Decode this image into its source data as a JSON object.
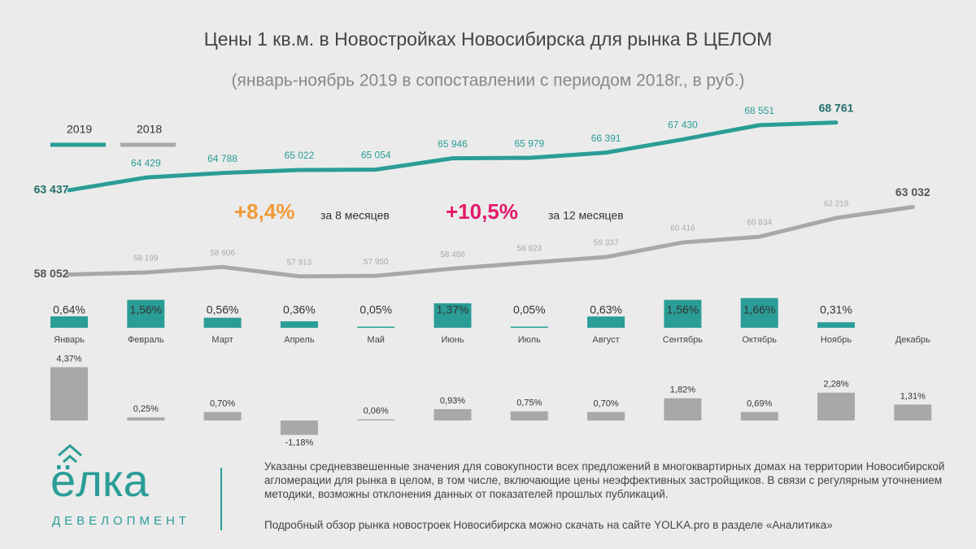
{
  "chart_data": [
    {
      "type": "line",
      "title": "Цены 1 кв.м. в Новостройках Новосибирска для рынка В ЦЕЛОМ",
      "subtitle": "(январь-ноябрь 2019 в сопоставлении с периодом 2018г., в руб.)",
      "categories": [
        "Январь",
        "Февраль",
        "Март",
        "Апрель",
        "Май",
        "Июнь",
        "Июль",
        "Август",
        "Сентябрь",
        "Октябрь",
        "Ноябрь",
        "Декабрь"
      ],
      "series": [
        {
          "name": "2019",
          "color": "#2a9d96",
          "values": [
            63437,
            64429,
            64788,
            65022,
            65054,
            65946,
            65979,
            66391,
            67430,
            68551,
            68761,
            null
          ],
          "value_labels": [
            "63 437",
            "64 429",
            "64 788",
            "65 022",
            "65 054",
            "65 946",
            "65 979",
            "66 391",
            "67 430",
            "68 551",
            "68 761",
            null
          ]
        },
        {
          "name": "2018",
          "color": "#a8a8a8",
          "axis": "y2",
          "values": [
            58052,
            58199,
            58606,
            57913,
            57950,
            58486,
            58923,
            59337,
            60416,
            60834,
            62219,
            63032
          ],
          "value_labels": [
            "58 052",
            "58 199",
            "58 606",
            "57 913",
            "57 950",
            "58 486",
            "58 923",
            "59 337",
            "60 416",
            "60 834",
            "62 219",
            "63 032"
          ]
        }
      ],
      "ylim": [
        56000,
        72000
      ],
      "y2lim": [
        57300,
        72300
      ],
      "annotations": [
        {
          "value": "+8,4%",
          "text": "за 8 месяцев"
        },
        {
          "value": "+10,5%",
          "text": "за 12 месяцев"
        }
      ]
    },
    {
      "type": "bar",
      "name": "2019",
      "color": "#2a9d96",
      "ylim": [
        0,
        2
      ],
      "values": [
        0.64,
        1.56,
        0.56,
        0.36,
        0.05,
        1.37,
        0.05,
        0.63,
        1.56,
        1.66,
        0.31,
        null
      ],
      "value_labels": [
        "0,64%",
        "1,56%",
        "0,56%",
        "0,36%",
        "0,05%",
        "1,37%",
        "0,05%",
        "0,63%",
        "1,56%",
        "1,66%",
        "0,31%",
        null
      ]
    },
    {
      "type": "bar",
      "name": "2018",
      "color": "#a8a8a8",
      "ylim": [
        -1.5,
        4.5
      ],
      "values": [
        4.37,
        0.25,
        0.7,
        -1.18,
        0.06,
        0.93,
        0.75,
        0.7,
        1.82,
        0.69,
        2.28,
        1.31
      ],
      "value_labels": [
        "4,37%",
        "0,25%",
        "0,70%",
        "-1,18%",
        "0,06%",
        "0,93%",
        "0,75%",
        "0,70%",
        "1,82%",
        "0,69%",
        "2,28%",
        "1,31%"
      ]
    }
  ],
  "footer": {
    "logo": "ёлка",
    "logo_sub": "девелопмент",
    "note": "Указаны средневзвешенные значения для совокупности всех предложений в многоквартирных домах на территории Новосибирской агломерации для рынка в целом, в том числе, включающие цены неэффективных застройщиков. В связи с регулярным уточнением методики, возможны отклонения данных от показателей прошлых публикаций.",
    "link": "Подробный обзор рынка новостроек Новосибирска можно скачать на сайте YOLKA.pro в разделе «Аналитика»"
  }
}
